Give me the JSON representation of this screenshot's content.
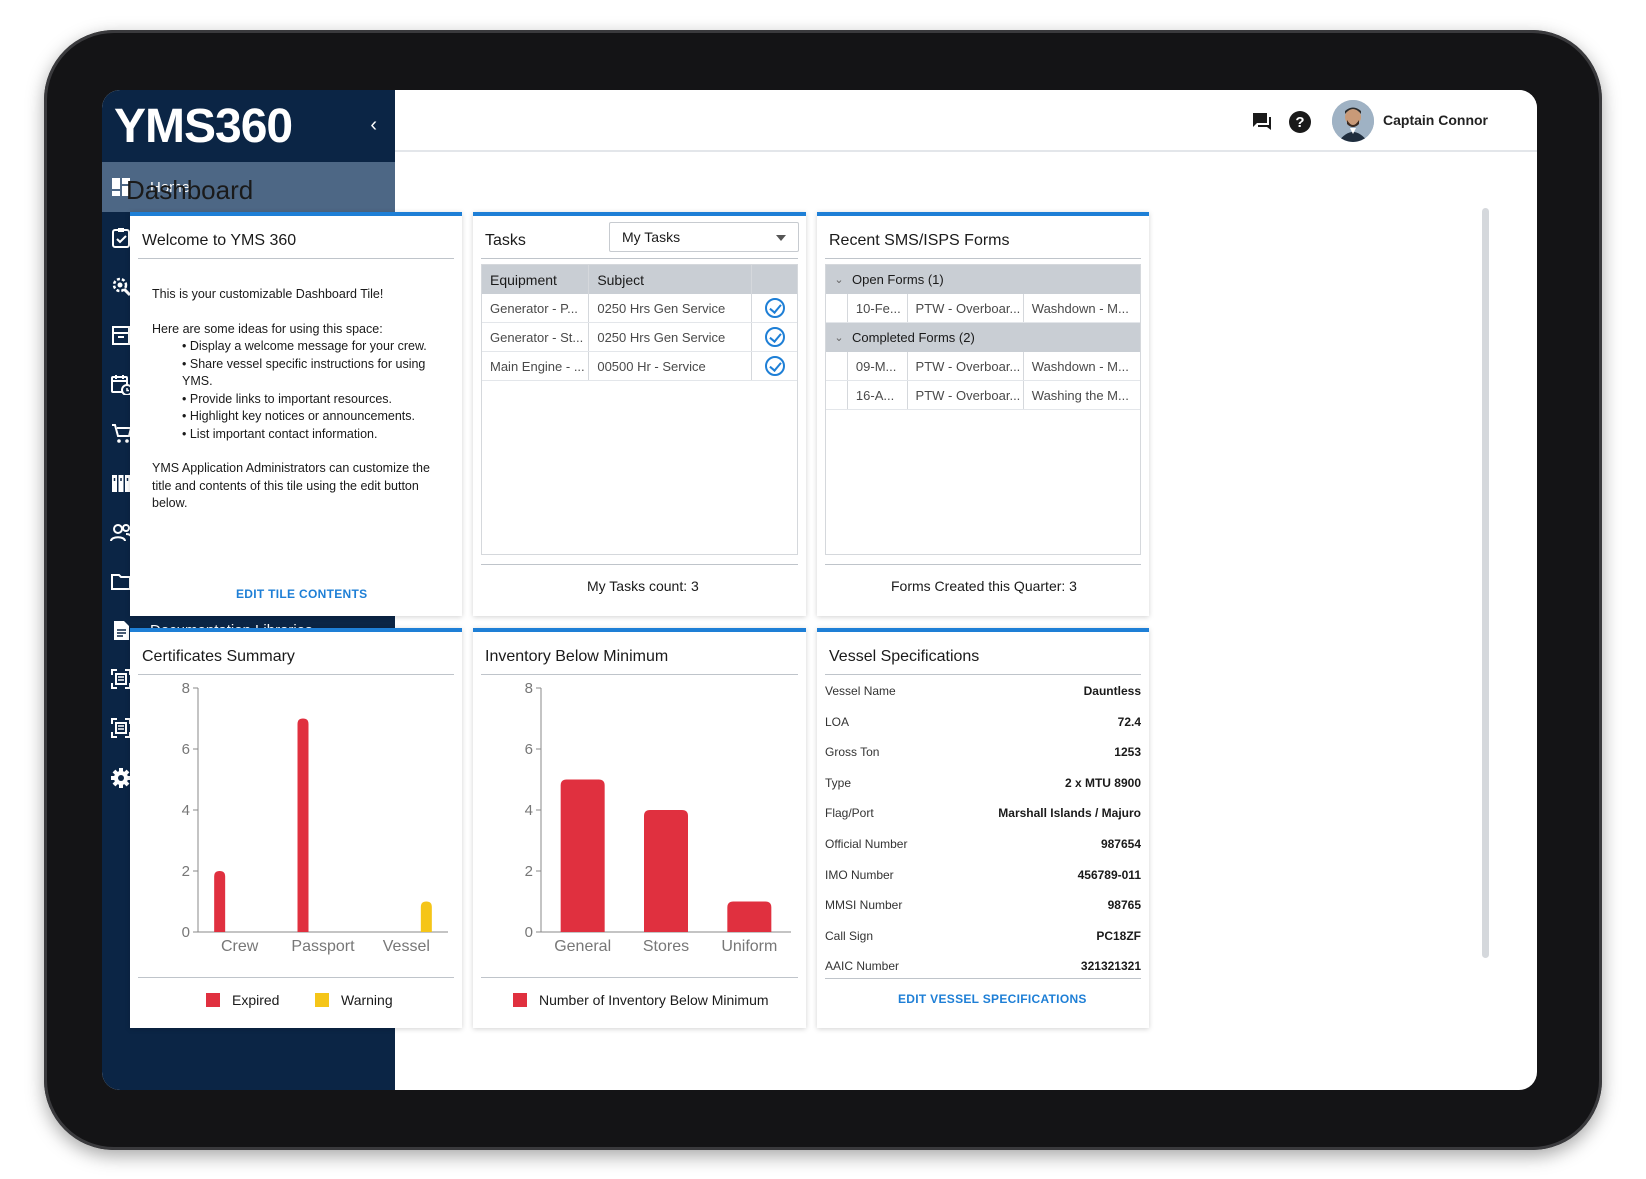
{
  "app": {
    "logo": "YMS360",
    "collapse_icon": "chevron-left-icon"
  },
  "sidebar": {
    "items": [
      {
        "label": "Home",
        "icon": "dashboard-icon",
        "active": true,
        "has_children": false
      },
      {
        "label": "Tasks",
        "icon": "clipboard-check-icon",
        "has_children": true
      },
      {
        "label": "Equipment",
        "icon": "gear-wrench-icon",
        "has_children": false
      },
      {
        "label": "Spares & Inventory",
        "icon": "inventory-box-icon",
        "has_children": true
      },
      {
        "label": "Scheduling",
        "icon": "calendar-clock-icon",
        "has_children": true
      },
      {
        "label": "Purchasing",
        "icon": "cart-icon",
        "has_children": false
      },
      {
        "label": "Logs",
        "icon": "binders-icon",
        "has_children": true
      },
      {
        "label": "Crew & Guest Data",
        "icon": "people-icon",
        "has_children": true
      },
      {
        "label": "Certificates",
        "icon": "folder-icon",
        "has_children": true
      },
      {
        "label": "Documentation Libraries",
        "icon": "document-icon",
        "has_children": true
      },
      {
        "label": "SMS Forms",
        "icon": "form-scan-icon",
        "has_children": false
      },
      {
        "label": "ISPS Forms",
        "icon": "form-scan-icon",
        "has_children": false
      },
      {
        "label": "Settings",
        "icon": "gear-icon",
        "has_children": true
      }
    ]
  },
  "topbar": {
    "user_name": "Captain Connor",
    "icons": [
      "chat-icon",
      "help-icon"
    ]
  },
  "main": {
    "page_title": "Dashboard",
    "welcome": {
      "title": "Welcome to YMS 360",
      "intro": "This is your customizable Dashboard Tile!",
      "ideas_heading": "Here are some ideas for using this space:",
      "ideas": [
        "Display a welcome message for your crew.",
        "Share vessel specific instructions for using YMS.",
        "Provide links to important resources.",
        "Highlight key notices or announcements.",
        "List important contact information."
      ],
      "admin_note": "YMS Application Administrators can customize the title and contents of this tile using the edit button below.",
      "edit_label": "EDIT TILE CONTENTS"
    },
    "tasks": {
      "title": "Tasks",
      "filter": "My Tasks",
      "columns": [
        "Equipment",
        "Subject",
        ""
      ],
      "rows": [
        {
          "equipment": "Generator - P...",
          "subject": "0250 Hrs Gen Service"
        },
        {
          "equipment": "Generator - St...",
          "subject": "0250 Hrs Gen Service"
        },
        {
          "equipment": "Main Engine - ...",
          "subject": "00500 Hr - Service"
        }
      ],
      "footer": "My Tasks count: 3"
    },
    "forms": {
      "title": "Recent SMS/ISPS Forms",
      "groups": [
        {
          "label": "Open Forms (1)",
          "rows": [
            [
              "10-Fe...",
              "PTW - Overboar...",
              "Washdown - M..."
            ]
          ]
        },
        {
          "label": "Completed Forms (2)",
          "rows": [
            [
              "09-M...",
              "PTW - Overboar...",
              "Washdown - M..."
            ],
            [
              "16-A...",
              "PTW - Overboar...",
              "Washing the M..."
            ]
          ]
        }
      ],
      "footer": "Forms Created this Quarter: 3"
    },
    "vessel": {
      "title": "Vessel Specifications",
      "specs": [
        {
          "label": "Vessel Name",
          "value": "Dauntless"
        },
        {
          "label": "LOA",
          "value": "72.4"
        },
        {
          "label": "Gross Ton",
          "value": "1253"
        },
        {
          "label": "Type",
          "value": "2 x MTU 8900"
        },
        {
          "label": "Flag/Port",
          "value": "Marshall Islands / Majuro"
        },
        {
          "label": "Official Number",
          "value": "987654"
        },
        {
          "label": "IMO Number",
          "value": "456789-011"
        },
        {
          "label": "MMSI Number",
          "value": "98765"
        },
        {
          "label": "Call Sign",
          "value": "PC18ZF"
        },
        {
          "label": "AAIC Number",
          "value": "321321321"
        }
      ],
      "edit_label": "EDIT VESSEL SPECIFICATIONS"
    }
  },
  "chart_data": [
    {
      "type": "bar",
      "title": "Certificates Summary",
      "categories": [
        "Crew",
        "Passport",
        "Vessel"
      ],
      "series": [
        {
          "name": "Expired",
          "color": "#e0303f",
          "values": [
            2,
            7,
            0
          ]
        },
        {
          "name": "Warning",
          "color": "#f5c518",
          "values": [
            0,
            0,
            1
          ]
        }
      ],
      "ylim": [
        0,
        8
      ],
      "yticks": [
        "0",
        "2",
        "4",
        "6",
        "8"
      ],
      "legend": "bottom"
    },
    {
      "type": "bar",
      "title": "Inventory Below Minimum",
      "categories": [
        "General",
        "Stores",
        "Uniform"
      ],
      "series": [
        {
          "name": "Number of Inventory Below Minimum",
          "color": "#e0303f",
          "values": [
            5,
            4,
            1
          ]
        }
      ],
      "ylim": [
        0,
        8
      ],
      "yticks": [
        "0",
        "2",
        "4",
        "6",
        "8"
      ],
      "legend": "bottom"
    }
  ],
  "colors": {
    "sidebar": "#0b2545",
    "active": "#4d6785",
    "accent": "#1e7fd6",
    "expired": "#e0303f",
    "warning": "#f5c518"
  }
}
